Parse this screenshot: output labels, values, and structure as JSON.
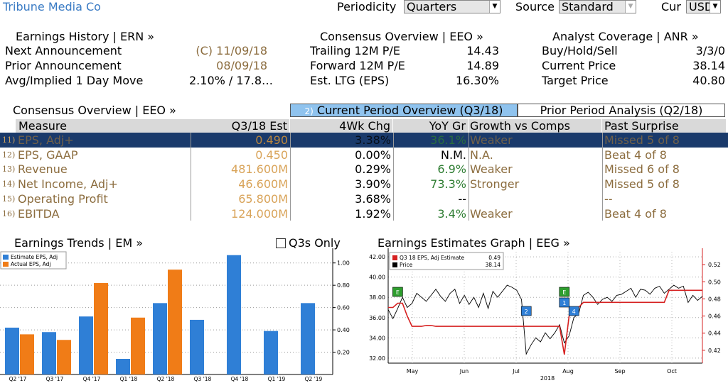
{
  "header": {
    "company": "Tribune Media Co",
    "periodicity_label": "Periodicity",
    "periodicity_value": "Quarters",
    "source_label": "Source",
    "source_value": "Standard",
    "cur_label": "Cur",
    "cur_value": "USD"
  },
  "earnings_history": {
    "title": "Earnings History | ERN »",
    "rows": [
      {
        "label": "Next Announcement",
        "value": "(C)  11/09/18"
      },
      {
        "label": "Prior Announcement",
        "value": "08/09/18"
      },
      {
        "label": "Avg/Implied 1 Day Move",
        "value": "2.10% / 17.8…"
      }
    ]
  },
  "consensus_top": {
    "title": "Consensus Overview | EEO »",
    "rows": [
      {
        "label": "Trailing 12M P/E",
        "value": "14.43"
      },
      {
        "label": "Forward 12M P/E",
        "value": "14.89"
      },
      {
        "label": "Est. LTG (EPS)",
        "value": "16.30%"
      }
    ]
  },
  "analyst_coverage": {
    "title": "Analyst Coverage | ANR »",
    "rows": [
      {
        "label": "Buy/Hold/Sell",
        "value": "3/3/0"
      },
      {
        "label": "Current Price",
        "value": "38.14"
      },
      {
        "label": "Target Price",
        "value": "40.80"
      }
    ]
  },
  "table": {
    "section_title": "Consensus Overview | EEO »",
    "tab_current_num": "2)",
    "tab_current": "Current Period Overview (Q3/18)",
    "tab_prior": "Prior Period Analysis (Q2/18)",
    "headers": [
      "Measure",
      "Q3/18 Est",
      "4Wk Chg",
      "YoY Gr",
      "Growth vs Comps",
      "Past Surprise"
    ],
    "rows": [
      {
        "num": "11)",
        "measure": "EPS, Adj+",
        "est": "0.490",
        "chg": "3.38%",
        "yoy": "36.1%",
        "comps": "Weaker",
        "surprise": "Missed 5 of 8"
      },
      {
        "num": "12)",
        "measure": "EPS, GAAP",
        "est": "0.450",
        "chg": "0.00%",
        "yoy": "N.M.",
        "comps": "N.A.",
        "surprise": "Beat 4 of 8"
      },
      {
        "num": "13)",
        "measure": "Revenue",
        "est": "481.600M",
        "chg": "0.29%",
        "yoy": "6.9%",
        "comps": "Weaker",
        "surprise": "Missed 6 of 8"
      },
      {
        "num": "14)",
        "measure": "Net Income, Adj+",
        "est": "46.600M",
        "chg": "3.90%",
        "yoy": "73.3%",
        "comps": "Stronger",
        "surprise": "Missed 5 of 8"
      },
      {
        "num": "15)",
        "measure": "Operating Profit",
        "est": "65.800M",
        "chg": "3.68%",
        "yoy": "--",
        "comps": "",
        "surprise": "--"
      },
      {
        "num": "16)",
        "measure": "EBITDA",
        "est": "124.000M",
        "chg": "1.92%",
        "yoy": "3.4%",
        "comps": "Weaker",
        "surprise": "Beat 4 of 8"
      }
    ]
  },
  "trends": {
    "title": "Earnings Trends | EM »",
    "q3s_only": "Q3s Only"
  },
  "graph": {
    "title": "Earnings Estimates Graph | EEG »"
  },
  "colors": {
    "estimate": "#2f7fd6",
    "actual": "#f07c17",
    "selected_row": "#1a3a6b",
    "tab_active": "#8fc3ee",
    "est_line": "#d62020",
    "label_gold": "#8c6d3f",
    "positive_green": "#2e7d32"
  },
  "chart_data": [
    {
      "type": "bar",
      "legend": [
        "Estimate EPS, Adj",
        "Actual EPS, Adj"
      ],
      "categories": [
        "Q2 '17",
        "Q3 '17",
        "Q4 '17",
        "Q1 '18",
        "Q2 '18",
        "Q3 '18",
        "Q4 '18",
        "Q1 '19",
        "Q2 '19"
      ],
      "series": [
        {
          "name": "Estimate EPS, Adj",
          "values": [
            0.42,
            0.38,
            0.52,
            0.14,
            0.64,
            0.49,
            1.07,
            0.39,
            0.64
          ]
        },
        {
          "name": "Actual EPS, Adj",
          "values": [
            0.36,
            0.31,
            0.82,
            0.51,
            0.94,
            null,
            null,
            null,
            null
          ]
        }
      ],
      "ylim": [
        0,
        1.1
      ],
      "yticks": [
        "0.20",
        "0.40",
        "0.60",
        "0.80",
        "1.00"
      ],
      "ytick_values": [
        0.2,
        0.4,
        0.6,
        0.8,
        1.0
      ]
    },
    {
      "type": "line",
      "legend": [
        {
          "name": "Q3 18 EPS, Adj Estimate",
          "value": "0.49"
        },
        {
          "name": "Price",
          "value": "38.14"
        }
      ],
      "x_labels": [
        "May",
        "Jun",
        "Jul",
        "Aug",
        "Sep",
        "Oct"
      ],
      "x_year": "2018",
      "left_axis": {
        "ylim": [
          31.5,
          42.5
        ],
        "ticks": [
          "32.00",
          "34.00",
          "36.00",
          "38.00",
          "40.00",
          "42.00"
        ],
        "tick_values": [
          32,
          34,
          36,
          38,
          40,
          42
        ]
      },
      "right_axis": {
        "ylim": [
          0.405,
          0.535
        ],
        "ticks": [
          "0.42",
          "0.44",
          "0.46",
          "0.48",
          "0.50",
          "0.52"
        ],
        "tick_values": [
          0.42,
          0.44,
          0.46,
          0.48,
          0.5,
          0.52
        ]
      },
      "series": [
        {
          "name": "Price",
          "axis": "left",
          "values": [
            36.8,
            35.9,
            36.9,
            38.0,
            37.0,
            37.4,
            38.4,
            38.0,
            37.6,
            38.2,
            38.8,
            38.1,
            37.6,
            38.4,
            38.8,
            37.4,
            38.2,
            37.3,
            38.0,
            37.0,
            38.4,
            36.9,
            38.6,
            38.0,
            38.6,
            39.2,
            39.0,
            38.7,
            37.8,
            32.4,
            33.3,
            34.0,
            33.6,
            34.5,
            33.9,
            34.5,
            35.3,
            33.5,
            34.2,
            36.0,
            36.4,
            38.2,
            38.5,
            38.0,
            37.3,
            37.8,
            38.0,
            37.6,
            38.2,
            38.3,
            38.6,
            38.9,
            38.0,
            38.8,
            38.7,
            38.3,
            38.9,
            39.1,
            38.4,
            38.8,
            39.2,
            38.9,
            39.1,
            37.5,
            38.2,
            37.7,
            38.1
          ]
        },
        {
          "name": "Q3 18 EPS, Adj Estimate",
          "axis": "right",
          "values": [
            0.47,
            0.47,
            0.475,
            0.475,
            0.46,
            0.448,
            0.448,
            0.448,
            0.449,
            0.449,
            0.448,
            0.448,
            0.448,
            0.448,
            0.448,
            0.448,
            0.448,
            0.448,
            0.448,
            0.448,
            0.448,
            0.448,
            0.448,
            0.448,
            0.448,
            0.448,
            0.448,
            0.448,
            0.448,
            0.448,
            0.448,
            0.448,
            0.448,
            0.448,
            0.448,
            0.448,
            0.448,
            0.415,
            0.46,
            0.47,
            0.47,
            0.476,
            0.476,
            0.476,
            0.476,
            0.476,
            0.476,
            0.476,
            0.476,
            0.476,
            0.476,
            0.476,
            0.476,
            0.476,
            0.476,
            0.476,
            0.476,
            0.476,
            0.476,
            0.49,
            0.49,
            0.49,
            0.49,
            0.49,
            0.49,
            0.49,
            0.49
          ]
        }
      ],
      "event_markers": [
        {
          "label": "E",
          "color": "#2e9e2e",
          "index": 2
        },
        {
          "label": "2",
          "color": "#2f7fd6",
          "index": 29
        },
        {
          "label": "E",
          "color": "#2e9e2e",
          "index": 37
        },
        {
          "label": "4",
          "color": "#2f7fd6",
          "index": 39
        },
        {
          "label": "1",
          "color": "#2f7fd6",
          "index": 37
        }
      ]
    }
  ]
}
